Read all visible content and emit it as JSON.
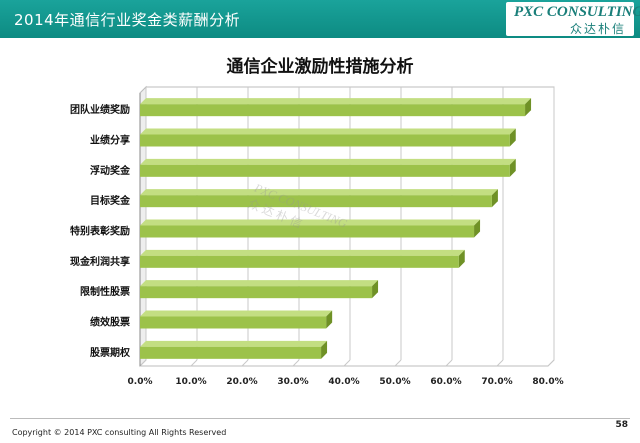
{
  "header": {
    "title": "2014年通信行业奖金类薪酬分析",
    "logo_main": "PXC CONSULTING",
    "logo_sub": "众达朴信"
  },
  "chart_data": {
    "type": "bar",
    "orientation": "horizontal",
    "title": "通信企业激励性措施分析",
    "categories": [
      "团队业绩奖励",
      "业绩分享",
      "浮动奖金",
      "目标奖金",
      "特别表彰奖励",
      "现金利润共享",
      "限制性股票",
      "绩效股票",
      "股票期权"
    ],
    "values": [
      75.5,
      72.5,
      72.5,
      69.0,
      65.5,
      62.5,
      45.5,
      36.5,
      35.5
    ],
    "xlim": [
      0,
      80
    ],
    "xticks": [
      "0.0%",
      "10.0%",
      "20.0%",
      "30.0%",
      "40.0%",
      "50.0%",
      "60.0%",
      "70.0%",
      "80.0%"
    ],
    "grid": true,
    "bar_color": "#9cc24a"
  },
  "watermark": {
    "main": "PXC CONSULTING",
    "sub": "众达朴信"
  },
  "footer": {
    "copyright": "Copyright © 2014 PXC consulting All Rights Reserved",
    "page": "58"
  }
}
